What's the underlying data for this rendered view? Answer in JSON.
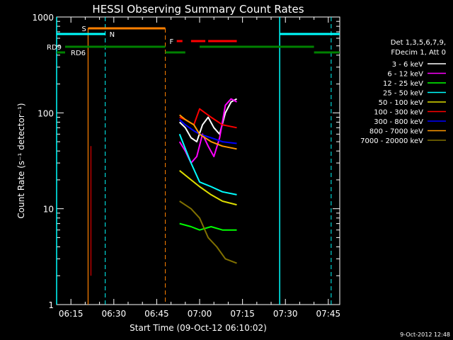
{
  "chart_data": {
    "type": "line",
    "title": "HESSI Observing Summary Count Rates",
    "xlabel": "Start Time (09-Oct-12 06:10:02)",
    "ylabel": "Count Rate (s⁻¹ detector⁻¹)",
    "yscale": "log",
    "ylim": [
      1,
      1000
    ],
    "xlim": [
      "06:10",
      "07:49"
    ],
    "x_ticks": [
      "06:15",
      "06:30",
      "06:45",
      "07:00",
      "07:15",
      "07:30",
      "07:45"
    ],
    "y_ticks": [
      "1",
      "10",
      "100",
      "1000"
    ],
    "footer": "9-Oct-2012 12:48",
    "legend": {
      "placement": "right",
      "header1": "Det 1,3,5,6,7,9,",
      "header2": "FDecim 1, Att 0",
      "entries": [
        {
          "label": "3 - 6 keV",
          "color": "#ffffff"
        },
        {
          "label": "6 - 12 keV",
          "color": "#ff00ff"
        },
        {
          "label": "12 - 25 keV",
          "color": "#00ff00"
        },
        {
          "label": "25 - 50 keV",
          "color": "#00ffff"
        },
        {
          "label": "50 - 100 keV",
          "color": "#dddd00"
        },
        {
          "label": "100 - 300 keV",
          "color": "#ff0000"
        },
        {
          "label": "300 - 800 keV",
          "color": "#0000ff"
        },
        {
          "label": "800 - 7000 keV",
          "color": "#ff9900"
        },
        {
          "label": "7000 - 20000 keV",
          "color": "#807000"
        }
      ]
    },
    "flag_labels": {
      "S": "S",
      "N": "N",
      "F": "F",
      "RD9": "RD9",
      "RD6": "RD6"
    },
    "series": [
      {
        "name": "3 - 6 keV",
        "color": "#ffffff",
        "x": [
          "06:53",
          "06:55",
          "06:57",
          "06:59",
          "07:01",
          "07:03",
          "07:05",
          "07:07",
          "07:09",
          "07:11",
          "07:13"
        ],
        "y": [
          80,
          70,
          55,
          50,
          75,
          90,
          70,
          60,
          100,
          130,
          140
        ]
      },
      {
        "name": "6 - 12 keV",
        "color": "#ff00ff",
        "x": [
          "06:53",
          "06:55",
          "06:57",
          "06:59",
          "07:01",
          "07:03",
          "07:05",
          "07:07",
          "07:09",
          "07:11",
          "07:13"
        ],
        "y": [
          50,
          40,
          30,
          35,
          60,
          45,
          35,
          55,
          120,
          140,
          130
        ]
      },
      {
        "name": "12 - 25 keV",
        "color": "#00ff00",
        "x": [
          "06:53",
          "06:57",
          "07:00",
          "07:04",
          "07:08",
          "07:13"
        ],
        "y": [
          7,
          6.5,
          6,
          6.5,
          6,
          6
        ]
      },
      {
        "name": "25 - 50 keV",
        "color": "#00ffff",
        "x": [
          "06:53",
          "06:57",
          "07:00",
          "07:04",
          "07:08",
          "07:13"
        ],
        "y": [
          60,
          30,
          19,
          17,
          15,
          14
        ]
      },
      {
        "name": "50 - 100 keV",
        "color": "#dddd00",
        "x": [
          "06:53",
          "06:57",
          "07:00",
          "07:04",
          "07:08",
          "07:13"
        ],
        "y": [
          25,
          20,
          17,
          14,
          12,
          11
        ]
      },
      {
        "name": "100 - 300 keV",
        "color": "#ff0000",
        "x": [
          "06:53",
          "06:55",
          "06:58",
          "07:00",
          "07:04",
          "07:08",
          "07:13"
        ],
        "y": [
          90,
          85,
          75,
          110,
          90,
          75,
          70
        ]
      },
      {
        "name": "300 - 800 keV",
        "color": "#0000ff",
        "x": [
          "06:53",
          "06:55",
          "06:58",
          "07:00",
          "07:04",
          "07:08",
          "07:13"
        ],
        "y": [
          85,
          75,
          65,
          60,
          55,
          50,
          48
        ]
      },
      {
        "name": "800 - 7000 keV",
        "color": "#ff9900",
        "x": [
          "06:53",
          "06:55",
          "06:58",
          "07:00",
          "07:04",
          "07:08",
          "07:13"
        ],
        "y": [
          95,
          85,
          75,
          60,
          50,
          45,
          42
        ]
      },
      {
        "name": "7000 - 20000 keV",
        "color": "#807000",
        "x": [
          "06:53",
          "06:57",
          "07:00",
          "07:03",
          "07:06",
          "07:09",
          "07:13"
        ],
        "y": [
          12,
          10,
          8,
          5,
          4,
          3,
          2.7
        ]
      }
    ]
  }
}
